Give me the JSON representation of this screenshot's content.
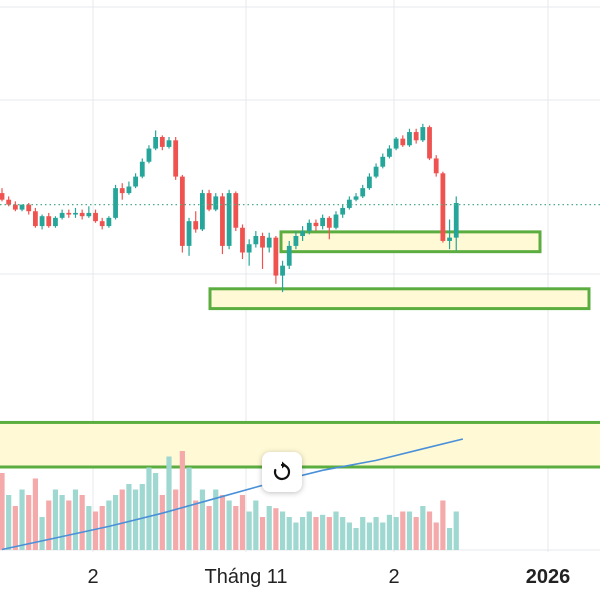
{
  "chart_data": {
    "type": "candlestick",
    "x_ticks": [
      {
        "label": "2",
        "bold": false
      },
      {
        "label": "Tháng 11",
        "bold": false
      },
      {
        "label": "2",
        "bold": false
      },
      {
        "label": "2026",
        "bold": true
      }
    ],
    "colors": {
      "up": "#26a69a",
      "down": "#ef5350",
      "up_volume": "#9fd8d0",
      "down_volume": "#f4aaaa",
      "zone_fill": "#fff9d6",
      "zone_border": "#5cad3f",
      "ma_line": "#4a90d9",
      "price_line": "#4caf8a",
      "grid": "#e6e9ee"
    },
    "candles": [
      {
        "o": 0.6,
        "c": 0.2,
        "h": 0.9,
        "l": 0.1
      },
      {
        "o": 0.2,
        "c": -0.1,
        "h": 0.4,
        "l": -0.2
      },
      {
        "o": -0.1,
        "c": -0.4,
        "h": 0.1,
        "l": -0.5
      },
      {
        "o": -0.4,
        "c": -0.1,
        "h": -0.1,
        "l": -0.5
      },
      {
        "o": -0.1,
        "c": -0.5,
        "h": 0.0,
        "l": -0.7
      },
      {
        "o": -0.5,
        "c": -1.4,
        "h": -0.3,
        "l": -1.5
      },
      {
        "o": -1.4,
        "c": -0.8,
        "h": -0.7,
        "l": -1.6
      },
      {
        "o": -0.8,
        "c": -1.4,
        "h": -0.6,
        "l": -1.5
      },
      {
        "o": -1.4,
        "c": -0.9,
        "h": -0.8,
        "l": -1.5
      },
      {
        "o": -0.9,
        "c": -0.6,
        "h": -0.4,
        "l": -1.0
      },
      {
        "o": -0.6,
        "c": -0.7,
        "h": -0.4,
        "l": -0.9
      },
      {
        "o": -0.7,
        "c": -0.6,
        "h": -0.3,
        "l": -0.9
      },
      {
        "o": -0.6,
        "c": -0.8,
        "h": -0.4,
        "l": -1.0
      },
      {
        "o": -0.8,
        "c": -0.6,
        "h": -0.2,
        "l": -0.9
      },
      {
        "o": -0.6,
        "c": -1.1,
        "h": -0.4,
        "l": -1.2
      },
      {
        "o": -1.1,
        "c": -1.4,
        "h": -0.9,
        "l": -1.6
      },
      {
        "o": -1.4,
        "c": -0.9,
        "h": -0.8,
        "l": -1.5
      },
      {
        "o": -0.9,
        "c": 0.9,
        "h": 1.1,
        "l": -1.0
      },
      {
        "o": 0.9,
        "c": 0.6,
        "h": 1.2,
        "l": 0.2
      },
      {
        "o": 0.6,
        "c": 1.0,
        "h": 1.3,
        "l": 0.5
      },
      {
        "o": 1.0,
        "c": 1.6,
        "h": 1.8,
        "l": 0.9
      },
      {
        "o": 1.6,
        "c": 2.5,
        "h": 2.7,
        "l": 1.5
      },
      {
        "o": 2.5,
        "c": 3.3,
        "h": 3.5,
        "l": 2.4
      },
      {
        "o": 3.3,
        "c": 4.0,
        "h": 4.4,
        "l": 3.2
      },
      {
        "o": 4.0,
        "c": 3.4,
        "h": 4.1,
        "l": 3.2
      },
      {
        "o": 3.4,
        "c": 3.8,
        "h": 4.0,
        "l": 3.3
      },
      {
        "o": 3.8,
        "c": 1.6,
        "h": 4.0,
        "l": 1.4
      },
      {
        "o": 1.6,
        "c": -2.6,
        "h": 1.7,
        "l": -3.0
      },
      {
        "o": -2.6,
        "c": -1.1,
        "h": -0.9,
        "l": -3.2
      },
      {
        "o": -1.1,
        "c": -1.6,
        "h": -0.5,
        "l": -1.8
      },
      {
        "o": -1.6,
        "c": 0.6,
        "h": 0.8,
        "l": -1.7
      },
      {
        "o": 0.6,
        "c": -0.4,
        "h": 0.8,
        "l": -0.5
      },
      {
        "o": -0.4,
        "c": 0.4,
        "h": 0.6,
        "l": -0.5
      },
      {
        "o": 0.4,
        "c": -2.6,
        "h": 0.6,
        "l": -3.1
      },
      {
        "o": -2.6,
        "c": 0.6,
        "h": 0.8,
        "l": -2.8
      },
      {
        "o": 0.6,
        "c": -1.5,
        "h": 0.7,
        "l": -1.7
      },
      {
        "o": -1.5,
        "c": -3.0,
        "h": -1.3,
        "l": -3.4
      },
      {
        "o": -3.0,
        "c": -2.5,
        "h": -2.2,
        "l": -3.8
      },
      {
        "o": -2.5,
        "c": -2.0,
        "h": -1.7,
        "l": -2.7
      },
      {
        "o": -2.0,
        "c": -2.7,
        "h": -1.8,
        "l": -4.0
      },
      {
        "o": -2.7,
        "c": -2.1,
        "h": -1.8,
        "l": -3.0
      },
      {
        "o": -2.1,
        "c": -4.4,
        "h": -2.0,
        "l": -4.9
      },
      {
        "o": -4.4,
        "c": -3.8,
        "h": -3.5,
        "l": -5.4
      },
      {
        "o": -3.8,
        "c": -2.6,
        "h": -2.3,
        "l": -4.0
      },
      {
        "o": -2.6,
        "c": -2.0,
        "h": -1.7,
        "l": -2.8
      },
      {
        "o": -2.0,
        "c": -1.7,
        "h": -1.4,
        "l": -2.3
      },
      {
        "o": -1.7,
        "c": -1.2,
        "h": -1.0,
        "l": -1.9
      },
      {
        "o": -1.2,
        "c": -1.4,
        "h": -1.0,
        "l": -1.7
      },
      {
        "o": -1.4,
        "c": -0.9,
        "h": -0.7,
        "l": -1.6
      },
      {
        "o": -0.9,
        "c": -1.5,
        "h": -0.8,
        "l": -2.2
      },
      {
        "o": -1.5,
        "c": -0.7,
        "h": -0.5,
        "l": -1.6
      },
      {
        "o": -0.7,
        "c": -0.3,
        "h": -0.1,
        "l": -0.9
      },
      {
        "o": -0.3,
        "c": 0.2,
        "h": 0.4,
        "l": -0.4
      },
      {
        "o": 0.2,
        "c": 0.4,
        "h": 0.6,
        "l": 0.1
      },
      {
        "o": 0.4,
        "c": 0.9,
        "h": 1.1,
        "l": 0.3
      },
      {
        "o": 0.9,
        "c": 1.6,
        "h": 1.8,
        "l": 0.8
      },
      {
        "o": 1.6,
        "c": 2.2,
        "h": 2.4,
        "l": 1.5
      },
      {
        "o": 2.2,
        "c": 2.8,
        "h": 3.0,
        "l": 2.1
      },
      {
        "o": 2.8,
        "c": 3.3,
        "h": 3.5,
        "l": 2.7
      },
      {
        "o": 3.3,
        "c": 3.9,
        "h": 4.0,
        "l": 3.2
      },
      {
        "o": 3.9,
        "c": 3.5,
        "h": 4.1,
        "l": 3.4
      },
      {
        "o": 3.5,
        "c": 4.3,
        "h": 4.5,
        "l": 3.4
      },
      {
        "o": 4.3,
        "c": 3.8,
        "h": 4.5,
        "l": 3.6
      },
      {
        "o": 3.8,
        "c": 4.6,
        "h": 4.8,
        "l": 3.7
      },
      {
        "o": 4.6,
        "c": 2.7,
        "h": 4.7,
        "l": 2.6
      },
      {
        "o": 2.7,
        "c": 1.8,
        "h": 2.9,
        "l": 1.6
      },
      {
        "o": 1.8,
        "c": -2.3,
        "h": 1.9,
        "l": -2.4
      },
      {
        "o": -2.3,
        "c": -2.1,
        "h": -1.0,
        "l": -2.8
      },
      {
        "o": -2.1,
        "c": 0.0,
        "h": 0.4,
        "l": -2.9
      }
    ],
    "volumes": [
      0.7,
      0.5,
      0.4,
      0.55,
      0.5,
      0.65,
      0.3,
      0.45,
      0.55,
      0.5,
      0.45,
      0.55,
      0.5,
      0.4,
      0.35,
      0.4,
      0.45,
      0.5,
      0.55,
      0.6,
      0.55,
      0.6,
      0.75,
      0.7,
      0.5,
      0.85,
      0.55,
      0.9,
      0.75,
      0.45,
      0.55,
      0.4,
      0.55,
      0.5,
      0.45,
      0.4,
      0.5,
      0.35,
      0.45,
      0.3,
      0.4,
      0.38,
      0.35,
      0.3,
      0.25,
      0.3,
      0.35,
      0.3,
      0.32,
      0.3,
      0.35,
      0.3,
      0.25,
      0.2,
      0.3,
      0.25,
      0.3,
      0.25,
      0.32,
      0.3,
      0.35,
      0.35,
      0.3,
      0.4,
      0.35,
      0.25,
      0.45,
      0.2,
      0.35
    ],
    "volume_up": [
      false,
      true,
      false,
      true,
      false,
      false,
      true,
      false,
      true,
      true,
      false,
      true,
      false,
      true,
      false,
      false,
      true,
      true,
      false,
      true,
      true,
      true,
      true,
      true,
      false,
      true,
      false,
      false,
      true,
      false,
      true,
      false,
      true,
      false,
      true,
      false,
      false,
      true,
      true,
      false,
      true,
      false,
      true,
      true,
      true,
      true,
      true,
      false,
      true,
      false,
      true,
      true,
      true,
      true,
      true,
      true,
      true,
      true,
      true,
      true,
      false,
      true,
      false,
      true,
      false,
      false,
      false,
      true,
      true
    ],
    "zones": [
      {
        "y_top": -1.75,
        "y_bottom": -2.95
      },
      {
        "y_top": -5.2,
        "y_bottom": -6.4
      },
      {
        "y_top": -13.3,
        "y_bottom": -16.0
      }
    ],
    "current_price": -0.1,
    "ma_line": [
      [
        0,
        -21.0
      ],
      [
        8,
        -20.3
      ],
      [
        16,
        -19.6
      ],
      [
        24,
        -18.8
      ],
      [
        32,
        -17.9
      ],
      [
        40,
        -17.0
      ],
      [
        48,
        -16.2
      ],
      [
        56,
        -15.6
      ],
      [
        64,
        -14.8
      ],
      [
        69,
        -14.3
      ]
    ]
  }
}
